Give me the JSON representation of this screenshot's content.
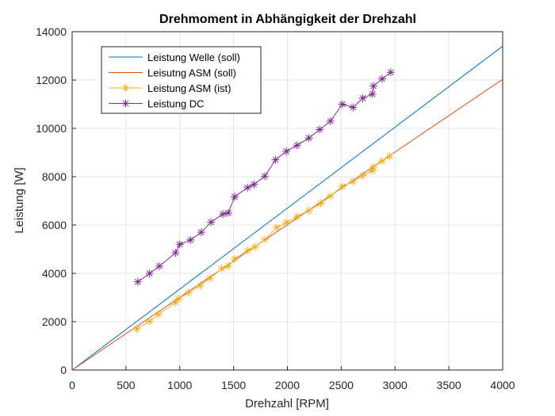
{
  "chart_data": {
    "type": "line",
    "title": "Drehmoment in Abhängigkeit der Drehzahl",
    "xlabel": "Drehzahl [RPM]",
    "ylabel": "Leistung [W]",
    "xlim": [
      0,
      4000
    ],
    "ylim": [
      0,
      14000
    ],
    "xticks": [
      0,
      500,
      1000,
      1500,
      2000,
      2500,
      3000,
      3500,
      4000
    ],
    "yticks": [
      0,
      2000,
      4000,
      6000,
      8000,
      10000,
      12000,
      14000
    ],
    "grid": true,
    "legend_position": "top-left",
    "series": [
      {
        "name": "Leistung Welle (soll)",
        "color": "#0072BD",
        "marker": "none",
        "x": [
          0,
          4000
        ],
        "y": [
          0,
          13400
        ]
      },
      {
        "name": "Leisutng ASM (soll)",
        "color": "#D95319",
        "marker": "none",
        "x": [
          0,
          4000
        ],
        "y": [
          0,
          12030
        ]
      },
      {
        "name": "Leistung ASM (ist)",
        "color": "#EDB120",
        "marker": "star",
        "x": [
          600,
          720,
          800,
          960,
          990,
          1080,
          1190,
          1280,
          1390,
          1450,
          1510,
          1630,
          1700,
          1790,
          1900,
          1990,
          2090,
          2200,
          2310,
          2400,
          2510,
          2610,
          2700,
          2790,
          2800,
          2880,
          2950
        ],
        "y": [
          1700,
          2020,
          2300,
          2800,
          2950,
          3200,
          3500,
          3800,
          4200,
          4300,
          4600,
          4950,
          5100,
          5400,
          5900,
          6100,
          6350,
          6600,
          6900,
          7200,
          7600,
          7800,
          8050,
          8250,
          8400,
          8650,
          8850
        ]
      },
      {
        "name": "Leistung DC",
        "color": "#7E2F8E",
        "marker": "star",
        "x": [
          610,
          720,
          810,
          960,
          1000,
          1100,
          1200,
          1290,
          1400,
          1450,
          1510,
          1630,
          1690,
          1790,
          1890,
          1990,
          2090,
          2200,
          2300,
          2400,
          2510,
          2610,
          2700,
          2790,
          2800,
          2880,
          2960
        ],
        "y": [
          3650,
          4000,
          4300,
          4850,
          5200,
          5380,
          5700,
          6120,
          6450,
          6500,
          7170,
          7550,
          7680,
          8020,
          8700,
          9050,
          9300,
          9600,
          9950,
          10300,
          11000,
          10870,
          11250,
          11420,
          11750,
          12050,
          12320
        ]
      }
    ]
  }
}
